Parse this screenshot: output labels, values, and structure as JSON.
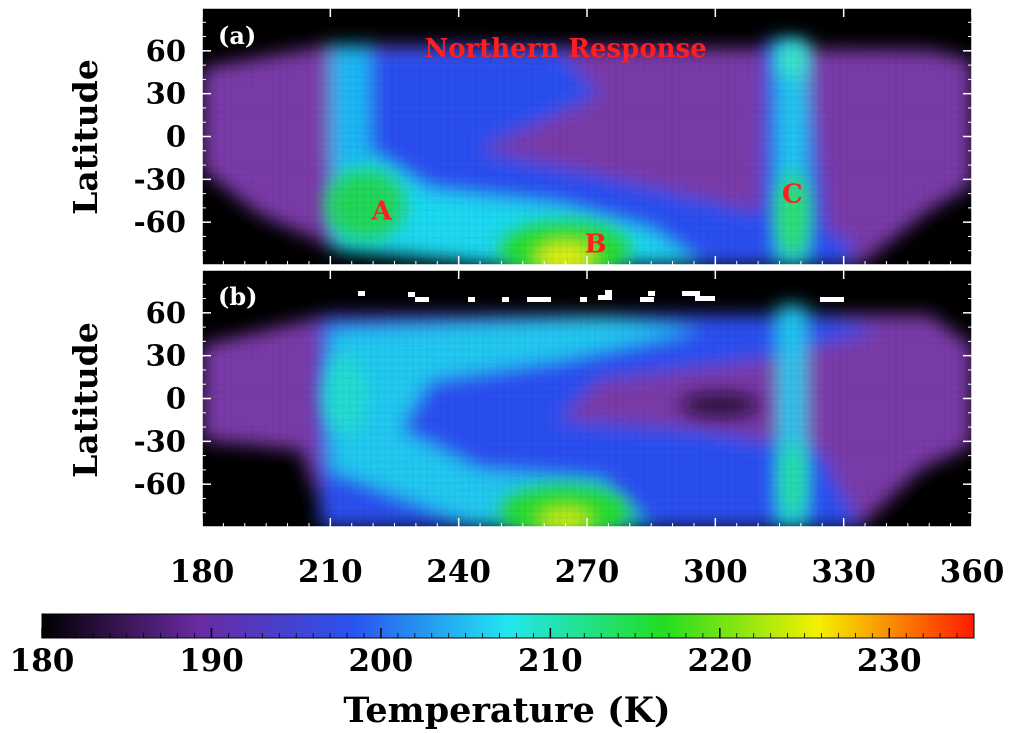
{
  "chart_data": {
    "type": "heatmap",
    "x_tick_labels": [
      "180",
      "210",
      "240",
      "270",
      "300",
      "330",
      "360"
    ],
    "x_ticks": [
      180,
      210,
      240,
      270,
      300,
      330,
      360
    ],
    "xlim": [
      180,
      360
    ],
    "colorbar": {
      "label": "Temperature (K)",
      "range": [
        180,
        235
      ],
      "tick_values": [
        180,
        190,
        200,
        210,
        220,
        230
      ],
      "tick_labels": [
        "180",
        "190",
        "200",
        "210",
        "220",
        "230"
      ],
      "colors": [
        "#000000",
        "#6a2aa0",
        "#2a52f0",
        "#22e6f0",
        "#22dd22",
        "#f5f000",
        "#ff1a00"
      ]
    },
    "panels": [
      {
        "label": "(a)",
        "ylabel": "Latitude",
        "y_ticks": [
          60,
          30,
          0,
          -30,
          -60
        ],
        "y_tick_labels": [
          "60",
          "30",
          "0",
          "-30",
          "-60"
        ],
        "ylim": [
          -90,
          90
        ],
        "annotations": [
          {
            "text": "Northern Response",
            "x": 232,
            "y": 62
          },
          {
            "text": "A",
            "x": 222,
            "y": -52
          },
          {
            "text": "B",
            "x": 272,
            "y": -75
          },
          {
            "text": "C",
            "x": 318,
            "y": -40
          }
        ],
        "features": [
          {
            "x": 219,
            "y": -50,
            "value": 212
          },
          {
            "x": 264,
            "y": -80,
            "value": 217
          },
          {
            "x": 318,
            "y": -55,
            "value": 211
          },
          {
            "x": 318,
            "y": 52,
            "value": 205
          }
        ]
      },
      {
        "label": "(b)",
        "ylabel": "Latitude",
        "y_ticks": [
          60,
          30,
          0,
          -30,
          -60
        ],
        "y_tick_labels": [
          "60",
          "30",
          "0",
          "-30",
          "-60"
        ],
        "ylim": [
          -90,
          90
        ],
        "annotations": [],
        "features": [
          {
            "x": 218,
            "y": 0,
            "value": 203
          },
          {
            "x": 264,
            "y": -82,
            "value": 214
          },
          {
            "x": 318,
            "y": -55,
            "value": 205
          }
        ]
      }
    ]
  }
}
